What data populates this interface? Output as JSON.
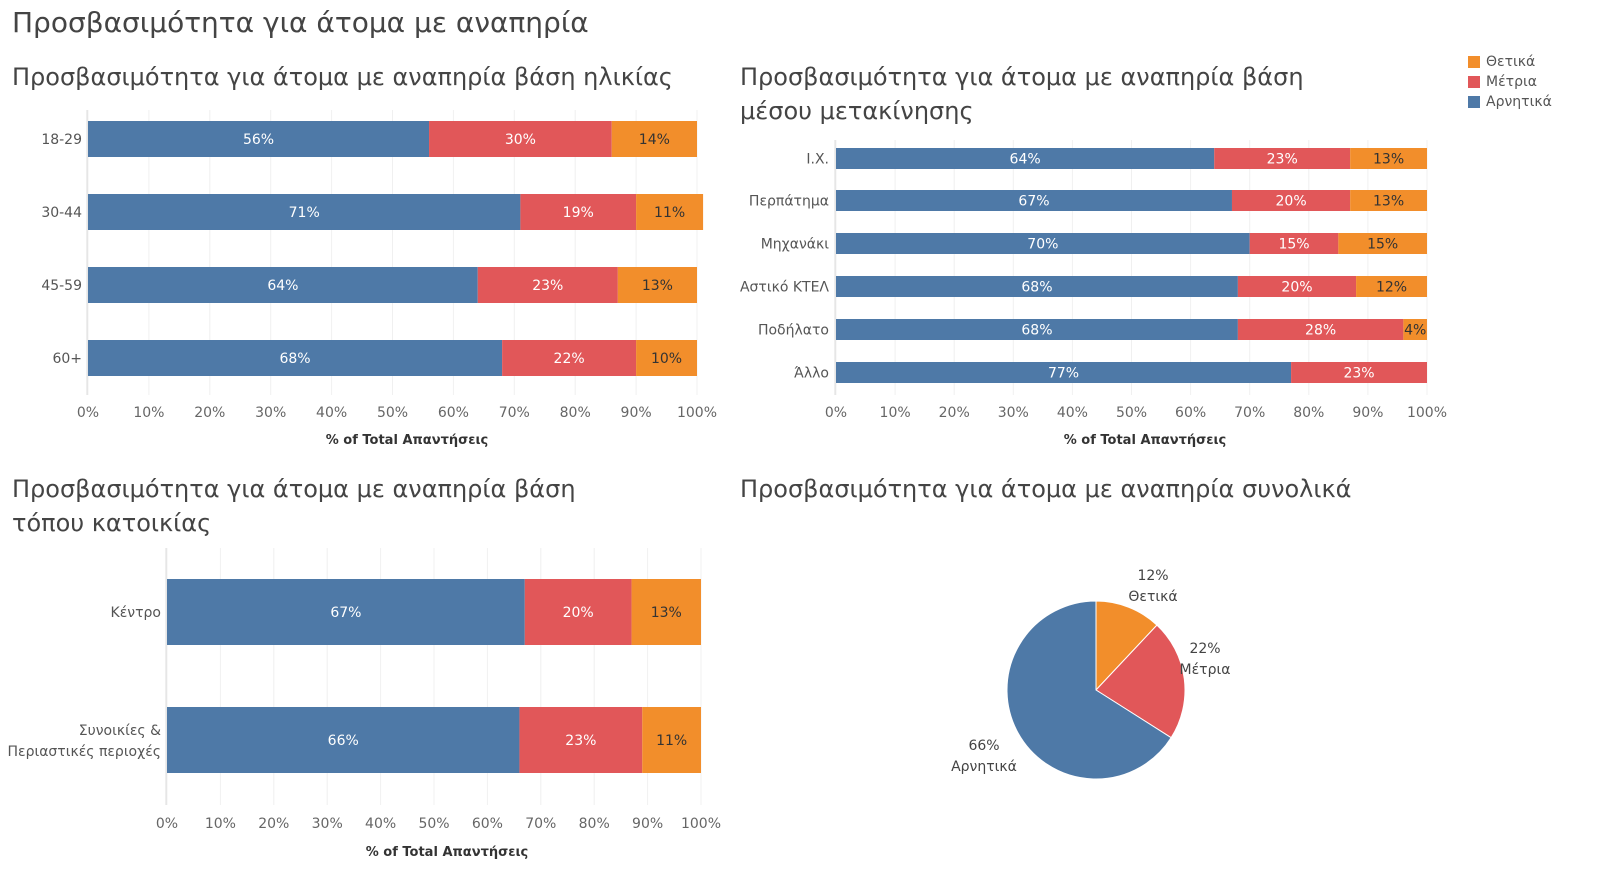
{
  "dashboard_title": "Προσβασιμότητα για άτομα με αναπηρία",
  "colors": {
    "Θετικά": "#F28E2B",
    "Μέτρια": "#E15759",
    "Αρνητικά": "#4E79A7"
  },
  "legend": {
    "items": [
      {
        "label": "Θετικά",
        "color": "#F28E2B"
      },
      {
        "label": "Μέτρια",
        "color": "#E15759"
      },
      {
        "label": "Αρνητικά",
        "color": "#4E79A7"
      }
    ]
  },
  "chart_data": [
    {
      "id": "age",
      "type": "bar",
      "orientation": "horizontal-stacked-100",
      "title": "Προσβασιμότητα για άτομα με αναπηρία βάση ηλικίας",
      "categories": [
        "18-29",
        "30-44",
        "45-59",
        "60+"
      ],
      "series": [
        {
          "name": "Αρνητικά",
          "values": [
            56,
            71,
            64,
            68
          ]
        },
        {
          "name": "Μέτρια",
          "values": [
            30,
            19,
            23,
            22
          ]
        },
        {
          "name": "Θετικά",
          "values": [
            14,
            11,
            13,
            10
          ]
        }
      ],
      "xlabel": "% of Total Απαντήσεις",
      "xticks": [
        "0%",
        "10%",
        "20%",
        "30%",
        "40%",
        "50%",
        "60%",
        "70%",
        "80%",
        "90%",
        "100%"
      ],
      "xlim": [
        0,
        100
      ],
      "grid": true
    },
    {
      "id": "transport",
      "type": "bar",
      "orientation": "horizontal-stacked-100",
      "title": "Προσβασιμότητα για άτομα με αναπηρία βάση μέσου μετακίνησης",
      "categories": [
        "Ι.Χ.",
        "Περπάτημα",
        "Μηχανάκι",
        "Αστικό ΚΤΕΛ",
        "Ποδήλατο",
        "Άλλο"
      ],
      "series": [
        {
          "name": "Αρνητικά",
          "values": [
            64,
            67,
            70,
            68,
            68,
            77
          ]
        },
        {
          "name": "Μέτρια",
          "values": [
            23,
            20,
            15,
            20,
            28,
            23
          ]
        },
        {
          "name": "Θετικά",
          "values": [
            13,
            13,
            15,
            12,
            4,
            0
          ]
        }
      ],
      "xlabel": "% of Total Απαντήσεις",
      "xticks": [
        "0%",
        "10%",
        "20%",
        "30%",
        "40%",
        "50%",
        "60%",
        "70%",
        "80%",
        "90%",
        "100%"
      ],
      "xlim": [
        0,
        100
      ],
      "grid": true
    },
    {
      "id": "residence",
      "type": "bar",
      "orientation": "horizontal-stacked-100",
      "title": "Προσβασιμότητα για άτομα με αναπηρία βάση τόπου κατοικίας",
      "categories": [
        "Κέντρο",
        "Συνοικίες & Περιαστικές περιοχές"
      ],
      "series": [
        {
          "name": "Αρνητικά",
          "values": [
            67,
            66
          ]
        },
        {
          "name": "Μέτρια",
          "values": [
            20,
            23
          ]
        },
        {
          "name": "Θετικά",
          "values": [
            13,
            11
          ]
        }
      ],
      "xlabel": "% of Total Απαντήσεις",
      "xticks": [
        "0%",
        "10%",
        "20%",
        "30%",
        "40%",
        "50%",
        "60%",
        "70%",
        "80%",
        "90%",
        "100%"
      ],
      "xlim": [
        0,
        100
      ],
      "grid": true
    },
    {
      "id": "overall",
      "type": "pie",
      "title": "Προσβασιμότητα για άτομα με αναπηρία συνολικά",
      "slices": [
        {
          "name": "Θετικά",
          "value": 12
        },
        {
          "name": "Μέτρια",
          "value": 22
        },
        {
          "name": "Αρνητικά",
          "value": 66
        }
      ]
    }
  ]
}
